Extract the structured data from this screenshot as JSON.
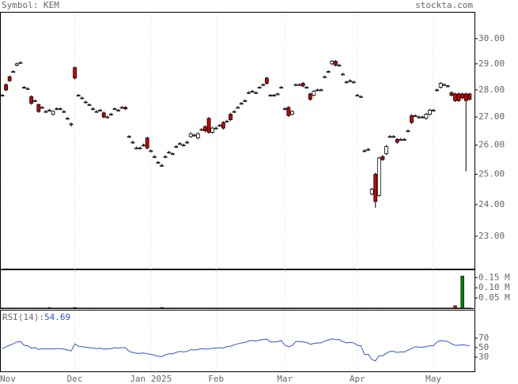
{
  "chart_data": [
    {
      "type": "candlestick",
      "title": "Symbol: KEM",
      "source": "stockta.com",
      "log": true,
      "categories": [
        "Nov",
        null,
        null,
        null,
        null,
        null,
        null,
        null,
        null,
        null,
        null,
        null,
        null,
        null,
        null,
        null,
        null,
        null,
        null,
        null,
        "Dec",
        null,
        null,
        null,
        null,
        null,
        null,
        null,
        null,
        null,
        null,
        null,
        null,
        null,
        null,
        null,
        null,
        null,
        null,
        null,
        null,
        "Jan 2025",
        null,
        null,
        null,
        null,
        null,
        null,
        null,
        null,
        null,
        null,
        null,
        null,
        null,
        null,
        null,
        null,
        null,
        "Feb",
        null,
        null,
        null,
        null,
        null,
        null,
        null,
        null,
        null,
        null,
        null,
        null,
        null,
        null,
        null,
        null,
        null,
        null,
        "Mar",
        null,
        null,
        null,
        null,
        null,
        null,
        null,
        null,
        null,
        null,
        null,
        null,
        null,
        null,
        null,
        null,
        null,
        null,
        null,
        "Apr",
        null,
        null,
        null,
        null,
        null,
        null,
        null,
        null,
        null,
        null,
        null,
        null,
        null,
        null,
        null,
        null,
        null,
        null,
        null,
        null,
        "May",
        null,
        null,
        null,
        null,
        null,
        null,
        null,
        null,
        null,
        null
      ],
      "open": [
        27.8,
        28.2,
        28.5,
        28.7,
        28.95,
        29.05,
        28.1,
        28.05,
        27.75,
        27.6,
        27.45,
        27.35,
        27.2,
        27.25,
        27.1,
        27.3,
        27.3,
        27.2,
        26.95,
        26.75,
        28.85,
        27.8,
        27.7,
        27.55,
        27.45,
        27.3,
        27.2,
        27.25,
        27.15,
        27.0,
        27.1,
        27.3,
        27.25,
        27.35,
        27.35,
        26.3,
        26.1,
        25.9,
        25.9,
        26.0,
        26.25,
        25.8,
        25.6,
        25.4,
        25.3,
        25.6,
        25.75,
        25.7,
        25.95,
        26.05,
        26.0,
        26.1,
        26.3,
        26.35,
        26.25,
        26.55,
        26.65,
        26.95,
        26.45,
        26.6,
        26.7,
        26.8,
        26.85,
        27.1,
        27.2,
        27.35,
        27.5,
        27.6,
        27.9,
        27.95,
        27.9,
        28.1,
        28.2,
        28.45,
        27.8,
        27.8,
        27.85,
        28.1,
        27.3,
        27.35,
        27.1,
        28.2,
        28.2,
        28.25,
        28.1,
        27.85,
        27.8,
        28.0,
        28.0,
        28.5,
        28.7,
        29.0,
        29.1,
        28.95,
        28.6,
        28.3,
        28.35,
        28.3,
        27.8,
        27.75,
        25.8,
        25.85,
        24.35,
        25.0,
        24.3,
        25.6,
        25.7,
        26.3,
        26.3,
        26.2,
        26.2,
        26.2,
        26.5,
        27.05,
        27.05,
        27.0,
        27.0,
        26.95,
        27.1,
        27.25,
        28.0,
        28.1,
        28.2,
        28.15,
        27.9,
        27.85,
        27.85,
        27.85,
        27.85,
        27.85
      ],
      "high": [
        27.85,
        28.25,
        28.55,
        28.75,
        29.05,
        29.1,
        28.15,
        28.1,
        27.8,
        27.65,
        27.5,
        27.4,
        27.25,
        27.3,
        27.25,
        27.35,
        27.35,
        27.25,
        27.0,
        26.8,
        28.9,
        27.85,
        27.75,
        27.6,
        27.5,
        27.35,
        27.25,
        27.3,
        27.2,
        27.05,
        27.15,
        27.35,
        27.3,
        27.4,
        27.4,
        26.35,
        26.15,
        25.95,
        25.95,
        26.05,
        26.3,
        25.85,
        25.65,
        25.45,
        25.35,
        25.65,
        25.8,
        25.75,
        26.0,
        26.1,
        26.05,
        26.15,
        26.45,
        26.4,
        26.45,
        26.6,
        26.7,
        27.0,
        26.65,
        26.65,
        26.75,
        26.85,
        26.9,
        27.15,
        27.25,
        27.4,
        27.55,
        27.65,
        27.95,
        28.0,
        27.95,
        28.15,
        28.25,
        28.5,
        27.85,
        27.85,
        27.9,
        28.15,
        27.35,
        27.4,
        27.25,
        28.25,
        28.25,
        28.3,
        28.15,
        27.9,
        28.0,
        28.05,
        28.05,
        28.55,
        28.75,
        29.15,
        29.15,
        29.0,
        28.65,
        28.35,
        28.4,
        28.35,
        27.85,
        27.8,
        25.85,
        25.9,
        24.55,
        25.05,
        25.6,
        25.65,
        26.0,
        26.35,
        26.35,
        26.25,
        26.25,
        26.25,
        26.55,
        27.1,
        27.1,
        27.05,
        27.05,
        27.15,
        27.3,
        27.3,
        28.05,
        28.3,
        28.25,
        28.2,
        27.95,
        27.9,
        27.9,
        27.9,
        27.9,
        27.9
      ],
      "low": [
        27.75,
        27.95,
        28.3,
        28.65,
        28.9,
        29.0,
        28.05,
        28.0,
        27.45,
        27.55,
        27.15,
        27.3,
        27.15,
        27.2,
        27.05,
        27.25,
        27.25,
        27.15,
        26.9,
        26.65,
        28.4,
        27.75,
        27.65,
        27.5,
        27.4,
        27.25,
        27.15,
        27.2,
        26.95,
        26.95,
        27.05,
        27.25,
        27.2,
        27.3,
        27.25,
        26.25,
        26.05,
        25.85,
        25.85,
        25.95,
        25.85,
        25.75,
        25.55,
        25.35,
        25.25,
        25.55,
        25.7,
        25.65,
        25.9,
        26.0,
        25.95,
        26.05,
        26.25,
        26.3,
        26.2,
        26.5,
        26.45,
        26.4,
        26.4,
        26.55,
        26.65,
        26.55,
        26.8,
        26.85,
        27.15,
        27.3,
        27.45,
        27.55,
        27.85,
        27.9,
        27.85,
        28.05,
        28.15,
        28.2,
        27.75,
        27.75,
        27.8,
        28.05,
        27.25,
        27.0,
        27.05,
        28.15,
        28.15,
        28.1,
        28.05,
        27.6,
        27.75,
        27.95,
        27.95,
        28.45,
        28.65,
        28.95,
        28.9,
        28.9,
        28.55,
        28.25,
        28.3,
        28.25,
        27.75,
        27.7,
        25.75,
        25.8,
        24.3,
        23.9,
        24.25,
        25.45,
        25.65,
        26.25,
        26.25,
        26.05,
        26.15,
        26.15,
        26.45,
        26.75,
        27.0,
        26.95,
        26.95,
        26.9,
        27.05,
        27.2,
        27.95,
        28.05,
        28.15,
        28.1,
        27.75,
        27.55,
        27.55,
        27.65,
        25.1,
        27.6
      ],
      "close": [
        27.8,
        28.0,
        28.35,
        28.7,
        29.0,
        29.05,
        28.1,
        28.05,
        27.5,
        27.6,
        27.2,
        27.35,
        27.2,
        27.25,
        27.2,
        27.3,
        27.3,
        27.2,
        26.95,
        26.75,
        28.45,
        27.8,
        27.7,
        27.55,
        27.45,
        27.3,
        27.2,
        27.25,
        27.0,
        27.0,
        27.1,
        27.3,
        27.25,
        27.35,
        27.3,
        26.3,
        26.1,
        25.9,
        25.9,
        26.0,
        25.9,
        25.8,
        25.6,
        25.4,
        25.3,
        25.6,
        25.75,
        25.7,
        25.95,
        26.05,
        26.0,
        26.1,
        26.4,
        26.35,
        26.4,
        26.55,
        26.5,
        26.45,
        26.6,
        26.6,
        26.7,
        26.6,
        26.85,
        26.9,
        27.2,
        27.35,
        27.5,
        27.6,
        27.9,
        27.95,
        27.9,
        28.1,
        28.2,
        28.25,
        27.8,
        27.8,
        27.85,
        28.1,
        27.3,
        27.05,
        27.2,
        28.2,
        28.2,
        28.15,
        28.1,
        27.65,
        27.95,
        28.0,
        28.0,
        28.5,
        28.7,
        29.1,
        28.95,
        28.95,
        28.6,
        28.3,
        28.35,
        28.3,
        27.8,
        27.75,
        25.8,
        25.85,
        24.5,
        24.1,
        25.55,
        25.5,
        25.95,
        26.3,
        26.3,
        26.1,
        26.2,
        26.2,
        26.5,
        26.8,
        27.05,
        27.0,
        27.0,
        27.1,
        27.25,
        27.25,
        28.0,
        28.25,
        28.2,
        28.15,
        27.8,
        27.6,
        27.6,
        27.7,
        27.6,
        27.65
      ],
      "up_color": "#ffffff",
      "down_color": "#cc0000",
      "ylim": [
        22.02,
        31.1
      ],
      "yticks": [
        {
          "value": 23,
          "label": "23.00"
        },
        {
          "value": 24,
          "label": "24.00"
        },
        {
          "value": 25,
          "label": "25.00"
        },
        {
          "value": 26,
          "label": "26.00"
        },
        {
          "value": 27,
          "label": "27.00"
        },
        {
          "value": 28,
          "label": "28.00"
        },
        {
          "value": 29,
          "label": "29.00"
        },
        {
          "value": 30,
          "label": "30.00"
        }
      ]
    },
    {
      "type": "bar",
      "values": [
        0.001,
        0.001,
        0.001,
        0.001,
        0.001,
        0.001,
        0.001,
        0.001,
        0.001,
        0.001,
        0.001,
        0.001,
        0.001,
        0.003,
        0.001,
        0.001,
        0.001,
        0.001,
        0.001,
        0.001,
        0.003,
        0.001,
        0.001,
        0.001,
        0.001,
        0.001,
        0.001,
        0.001,
        0.001,
        0.001,
        0.001,
        0.001,
        0.001,
        0.001,
        0.001,
        0.001,
        0.001,
        0.001,
        0.001,
        0.001,
        0.001,
        0.001,
        0.001,
        0.001,
        0.003,
        0.001,
        0.001,
        0.001,
        0.001,
        0.001,
        0.001,
        0.001,
        0.001,
        0.001,
        0.001,
        0.001,
        0.001,
        0.001,
        0.001,
        0.001,
        0.001,
        0.001,
        0.001,
        0.001,
        0.001,
        0.001,
        0.001,
        0.001,
        0.001,
        0.001,
        0.001,
        0.001,
        0.001,
        0.001,
        0.001,
        0.001,
        0.001,
        0.001,
        0.001,
        0.001,
        0.001,
        0.001,
        0.001,
        0.001,
        0.001,
        0.001,
        0.001,
        0.001,
        0.001,
        0.001,
        0.001,
        0.001,
        0.001,
        0.001,
        0.001,
        0.001,
        0.001,
        0.001,
        0.001,
        0.001,
        0.001,
        0.001,
        0.001,
        0.001,
        0.001,
        0.001,
        0.001,
        0.001,
        0.001,
        0.001,
        0.001,
        0.001,
        0.001,
        0.001,
        0.001,
        0.001,
        0.001,
        0.001,
        0.001,
        0.001,
        0.001,
        0.001,
        0.001,
        0.001,
        0.001,
        0.012,
        0.001,
        0.158,
        0.001,
        0.001
      ],
      "up_color": "#008000",
      "down_color": "#cc0000",
      "ylim": [
        0,
        0.19
      ],
      "yticks": [
        {
          "value": 0.05,
          "label": "0.05 M"
        },
        {
          "value": 0.1,
          "label": "0.10 M"
        },
        {
          "value": 0.15,
          "label": "0.15 M"
        }
      ]
    },
    {
      "type": "line",
      "label": "RSI(14):",
      "color": "#3355cc",
      "values": [
        48,
        52,
        55,
        58,
        62,
        63,
        55,
        54,
        49,
        50,
        46,
        48,
        47,
        48,
        47,
        48,
        48,
        47,
        45,
        43,
        58,
        53,
        52,
        51,
        50,
        49,
        48,
        49,
        47,
        47,
        48,
        50,
        49,
        50,
        50,
        42,
        40,
        38,
        38,
        39,
        37,
        36,
        34,
        32,
        31,
        35,
        37,
        37,
        40,
        42,
        41,
        42,
        46,
        45,
        46,
        48,
        47,
        47,
        49,
        49,
        50,
        49,
        52,
        53,
        56,
        58,
        60,
        61,
        64,
        65,
        64,
        66,
        67,
        68,
        62,
        62,
        63,
        65,
        55,
        52,
        54,
        63,
        63,
        62,
        61,
        57,
        59,
        60,
        60,
        64,
        66,
        69,
        67,
        67,
        63,
        60,
        61,
        60,
        55,
        54,
        35,
        36,
        25,
        22,
        33,
        33,
        38,
        42,
        42,
        40,
        41,
        41,
        45,
        48,
        52,
        51,
        51,
        52,
        54,
        54,
        62,
        65,
        64,
        63,
        58,
        55,
        55,
        56,
        55,
        54.69
      ],
      "ylim": [
        0,
        130
      ],
      "yticks": [
        30,
        50,
        70
      ]
    }
  ]
}
